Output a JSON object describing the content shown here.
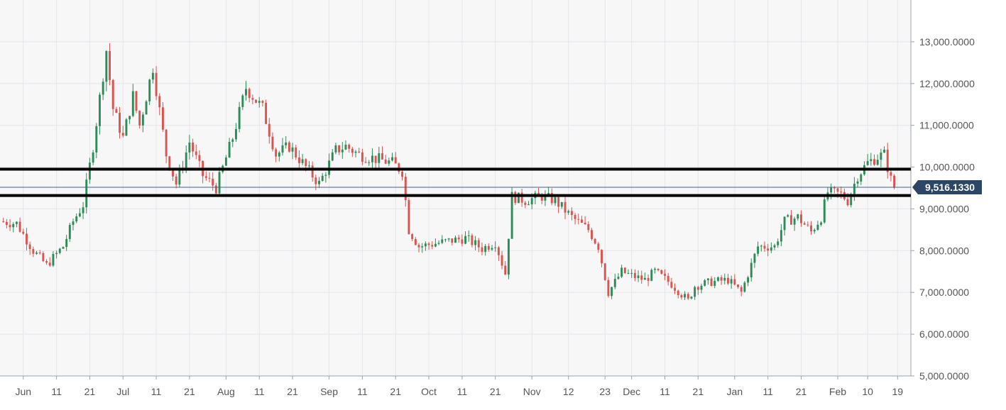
{
  "chart_data": {
    "type": "candlestick",
    "title": "",
    "xlabel": "",
    "ylabel": "",
    "ylim": [
      5000,
      14000
    ],
    "y_ticks": [
      "5,000.0000",
      "6,000.0000",
      "7,000.0000",
      "8,000.0000",
      "9,000.0000",
      "10,000.0000",
      "11,000.0000",
      "12,000.0000",
      "13,000.0000"
    ],
    "y_tick_values": [
      5000,
      6000,
      7000,
      8000,
      9000,
      10000,
      11000,
      12000,
      13000
    ],
    "x_ticks": [
      "Jun",
      "11",
      "21",
      "Jul",
      "11",
      "21",
      "Aug",
      "11",
      "21",
      "Sep",
      "11",
      "21",
      "Oct",
      "11",
      "21",
      "Nov",
      "12",
      "23",
      "Dec",
      "11",
      "21",
      "Jan",
      "11",
      "21",
      "Feb",
      "10",
      "19"
    ],
    "x_tick_dates": [
      "2019-06-01",
      "2019-06-11",
      "2019-06-21",
      "2019-07-01",
      "2019-07-11",
      "2019-07-21",
      "2019-08-01",
      "2019-08-11",
      "2019-08-21",
      "2019-09-01",
      "2019-09-11",
      "2019-09-21",
      "2019-10-01",
      "2019-10-11",
      "2019-10-21",
      "2019-11-01",
      "2019-11-12",
      "2019-11-23",
      "2019-12-01",
      "2019-12-11",
      "2019-12-21",
      "2020-01-01",
      "2020-01-11",
      "2020-01-21",
      "2020-02-01",
      "2020-02-10",
      "2020-02-19"
    ],
    "x_range": [
      "2019-05-25",
      "2020-02-23"
    ],
    "grid": true,
    "current_price": 9516.133,
    "current_price_label": "9,516.1330",
    "horizontal_levels": [
      9950,
      9320
    ],
    "colors": {
      "up": "#2e8b57",
      "down": "#d9534f",
      "level_line": "#000000",
      "price_line": "#44628a",
      "price_tag": "#2c4766",
      "grid": "#e3e6ea",
      "plot_bg": "#f7f7f7"
    },
    "series": [
      {
        "type": "candlestick",
        "anchors": [
          [
            "2019-05-25",
            8700
          ],
          [
            "2019-05-30",
            8650
          ],
          [
            "2019-06-04",
            8000
          ],
          [
            "2019-06-08",
            7650
          ],
          [
            "2019-06-13",
            8100
          ],
          [
            "2019-06-16",
            8700
          ],
          [
            "2019-06-19",
            9100
          ],
          [
            "2019-06-22",
            10500
          ],
          [
            "2019-06-26",
            12800
          ],
          [
            "2019-06-28",
            11400
          ],
          [
            "2019-07-01",
            10700
          ],
          [
            "2019-07-04",
            11700
          ],
          [
            "2019-07-06",
            11000
          ],
          [
            "2019-07-10",
            12400
          ],
          [
            "2019-07-14",
            10300
          ],
          [
            "2019-07-17",
            9600
          ],
          [
            "2019-07-21",
            10600
          ],
          [
            "2019-07-25",
            9800
          ],
          [
            "2019-07-29",
            9500
          ],
          [
            "2019-08-03",
            10700
          ],
          [
            "2019-08-07",
            11900
          ],
          [
            "2019-08-12",
            11400
          ],
          [
            "2019-08-16",
            10300
          ],
          [
            "2019-08-20",
            10500
          ],
          [
            "2019-08-24",
            10100
          ],
          [
            "2019-08-29",
            9600
          ],
          [
            "2019-09-03",
            10400
          ],
          [
            "2019-09-06",
            10500
          ],
          [
            "2019-09-10",
            10300
          ],
          [
            "2019-09-15",
            10200
          ],
          [
            "2019-09-20",
            10100
          ],
          [
            "2019-09-23",
            9900
          ],
          [
            "2019-09-25",
            8500
          ],
          [
            "2019-09-28",
            8100
          ],
          [
            "2019-10-05",
            8200
          ],
          [
            "2019-10-12",
            8300
          ],
          [
            "2019-10-17",
            8050
          ],
          [
            "2019-10-21",
            8200
          ],
          [
            "2019-10-24",
            7450
          ],
          [
            "2019-10-26",
            9300
          ],
          [
            "2019-10-30",
            9200
          ],
          [
            "2019-11-04",
            9300
          ],
          [
            "2019-11-08",
            9200
          ],
          [
            "2019-11-13",
            8800
          ],
          [
            "2019-11-18",
            8500
          ],
          [
            "2019-11-21",
            8100
          ],
          [
            "2019-11-24",
            7000
          ],
          [
            "2019-11-28",
            7500
          ],
          [
            "2019-12-01",
            7400
          ],
          [
            "2019-12-05",
            7300
          ],
          [
            "2019-12-08",
            7500
          ],
          [
            "2019-12-13",
            7200
          ],
          [
            "2019-12-18",
            6800
          ],
          [
            "2019-12-20",
            7150
          ],
          [
            "2019-12-25",
            7250
          ],
          [
            "2019-12-30",
            7300
          ],
          [
            "2020-01-03",
            7000
          ],
          [
            "2020-01-08",
            8100
          ],
          [
            "2020-01-13",
            8100
          ],
          [
            "2020-01-16",
            8700
          ],
          [
            "2020-01-20",
            8800
          ],
          [
            "2020-01-24",
            8450
          ],
          [
            "2020-01-27",
            8800
          ],
          [
            "2020-01-29",
            9400
          ],
          [
            "2020-02-02",
            9350
          ],
          [
            "2020-02-04",
            9200
          ],
          [
            "2020-02-07",
            9800
          ],
          [
            "2020-02-10",
            10100
          ],
          [
            "2020-02-13",
            10250
          ],
          [
            "2020-02-15",
            10300
          ],
          [
            "2020-02-17",
            9700
          ],
          [
            "2020-02-18",
            9516
          ]
        ]
      }
    ]
  }
}
